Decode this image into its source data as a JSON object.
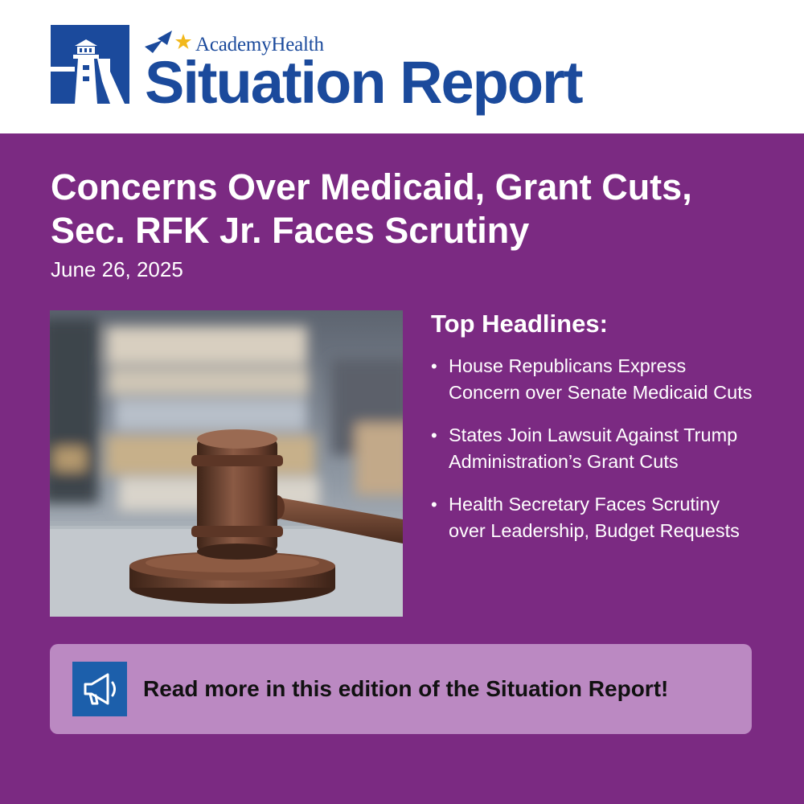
{
  "header": {
    "brand": "AcademyHealth",
    "product": "Situation Report",
    "logo_icon": "lighthouse-logo-icon",
    "stars_icon": "stars-icon"
  },
  "edition": {
    "title_line1": "Concerns Over Medicaid, Grant Cuts,",
    "title_line2": "Sec. RFK Jr. Faces Scrutiny",
    "date": "June 26, 2025"
  },
  "photo": {
    "subject": "gavel-image"
  },
  "top_headlines": {
    "heading": "Top Headlines:",
    "items": [
      "House Republicans Express Concern over Senate Medicaid Cuts",
      "States Join Lawsuit Against Trump Administration’s Grant Cuts",
      "Health Secretary Faces Scrutiny over Leadership, Budget Requests"
    ]
  },
  "cta": {
    "label": "Read more in this edition of the Situation Report!",
    "icon": "megaphone-icon"
  },
  "colors": {
    "background": "#7b2a82",
    "brand_blue": "#1b4a9c",
    "cta_background": "#bb89c2",
    "icon_box": "#1c5fab"
  }
}
